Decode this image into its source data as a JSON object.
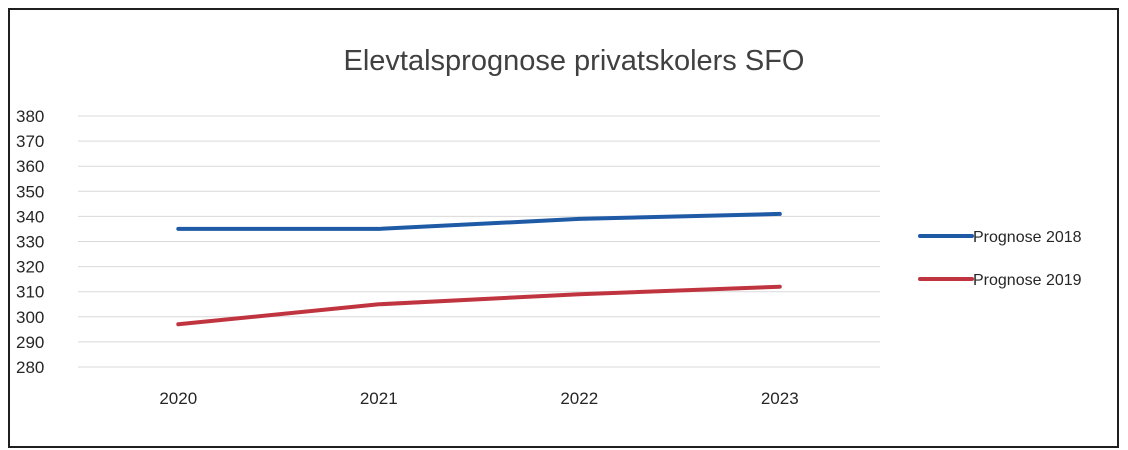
{
  "chart_data": {
    "type": "line",
    "title": "Elevtalsprognose privatskolers SFO",
    "xlabel": "",
    "ylabel": "",
    "categories": [
      "2020",
      "2021",
      "2022",
      "2023"
    ],
    "ylim": [
      280,
      380
    ],
    "yticks": [
      "380",
      "370",
      "360",
      "350",
      "340",
      "330",
      "320",
      "310",
      "300",
      "290",
      "280"
    ],
    "grid": true,
    "legend_position": "right",
    "series": [
      {
        "name": "Prognose 2018",
        "color": "#1f5aa6",
        "values": [
          335,
          335,
          339,
          341
        ]
      },
      {
        "name": "Prognose 2019",
        "color": "#c0343f",
        "values": [
          297,
          305,
          309,
          312
        ]
      }
    ]
  }
}
